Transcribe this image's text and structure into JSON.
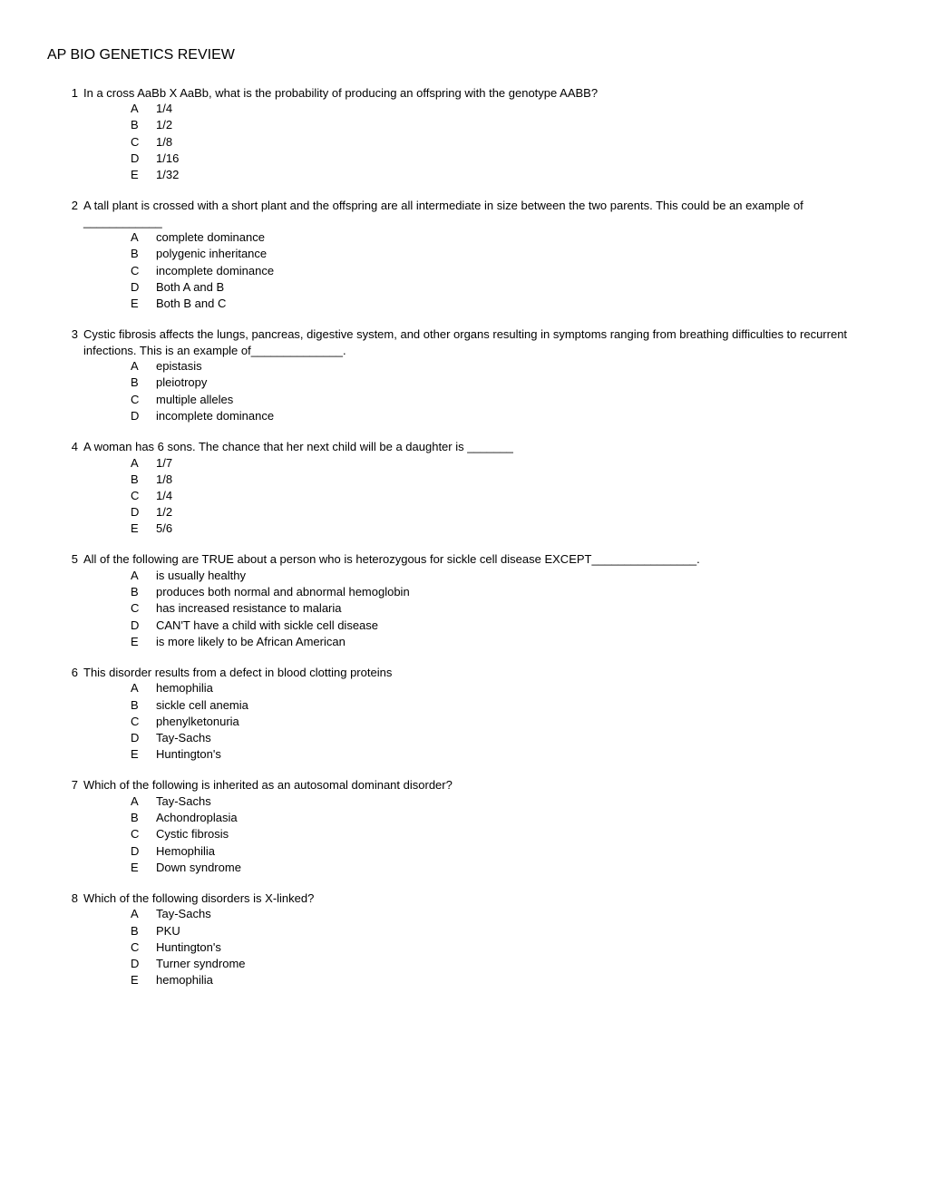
{
  "title": "AP BIO GENETICS REVIEW",
  "questions": [
    {
      "num": "1",
      "text": "In a cross AaBb  X  AaBb, what is the probability of producing an offspring with the   genotype AABB?",
      "choices": [
        {
          "letter": "A",
          "text": "1/4"
        },
        {
          "letter": "B",
          "text": "1/2"
        },
        {
          "letter": "C",
          "text": "1/8"
        },
        {
          "letter": "D",
          "text": "1/16"
        },
        {
          "letter": "E",
          "text": "1/32"
        }
      ]
    },
    {
      "num": "2",
      "text": "A tall plant is crossed with a short plant and the offspring are all intermediate in size between the two parents. This could be an example of ____________",
      "choices": [
        {
          "letter": "A",
          "text": "complete dominance"
        },
        {
          "letter": "B",
          "text": "polygenic inheritance"
        },
        {
          "letter": "C",
          "text": "incomplete dominance"
        },
        {
          "letter": "D",
          "text": "Both A and B"
        },
        {
          "letter": "E",
          "text": "Both B and C"
        }
      ]
    },
    {
      "num": "3",
      "text": "Cystic fibrosis affects the lungs, pancreas, digestive system, and other organs resulting in symptoms ranging from breathing difficulties to recurrent infections. This is an example of______________.",
      "choices": [
        {
          "letter": "A",
          "text": "epistasis"
        },
        {
          "letter": "B",
          "text": "pleiotropy"
        },
        {
          "letter": "C",
          "text": "multiple alleles"
        },
        {
          "letter": "D",
          "text": "incomplete dominance"
        }
      ]
    },
    {
      "num": "4",
      "text": "A woman has 6 sons. The chance that her next child will be a daughter is _______",
      "choices": [
        {
          "letter": "A",
          "text": "1/7"
        },
        {
          "letter": "B",
          "text": "1/8"
        },
        {
          "letter": "C",
          "text": "1/4"
        },
        {
          "letter": "D",
          "text": "1/2"
        },
        {
          "letter": "E",
          "text": "5/6"
        }
      ]
    },
    {
      "num": "5",
      "text": "All of the following are TRUE about a person who is heterozygous for sickle cell disease EXCEPT________________.",
      "choices": [
        {
          "letter": "A",
          "text": "is usually healthy"
        },
        {
          "letter": "B",
          "text": "produces both normal and abnormal hemoglobin"
        },
        {
          "letter": "C",
          "text": "has increased resistance to malaria"
        },
        {
          "letter": "D",
          "text": "CAN'T have a child with sickle cell disease"
        },
        {
          "letter": "E",
          "text": "is more likely to be African American"
        }
      ]
    },
    {
      "num": "6",
      "text": "This disorder results from a defect in blood clotting proteins",
      "choices": [
        {
          "letter": "A",
          "text": "hemophilia"
        },
        {
          "letter": "B",
          "text": "sickle cell anemia"
        },
        {
          "letter": "C",
          "text": "phenylketonuria"
        },
        {
          "letter": "D",
          "text": "Tay-Sachs"
        },
        {
          "letter": "E",
          "text": "Huntington's"
        }
      ]
    },
    {
      "num": "7",
      "text": "Which of the following is inherited as an autosomal dominant disorder?",
      "choices": [
        {
          "letter": "A",
          "text": "Tay-Sachs"
        },
        {
          "letter": "B",
          "text": "Achondroplasia"
        },
        {
          "letter": "C",
          "text": "Cystic fibrosis"
        },
        {
          "letter": "D",
          "text": "Hemophilia"
        },
        {
          "letter": "E",
          "text": "Down syndrome"
        }
      ]
    },
    {
      "num": "8",
      "text": "Which of the following disorders is X-linked?",
      "choices": [
        {
          "letter": "A",
          "text": "Tay-Sachs"
        },
        {
          "letter": "B",
          "text": "PKU"
        },
        {
          "letter": "C",
          "text": "Huntington's"
        },
        {
          "letter": "D",
          "text": "Turner syndrome"
        },
        {
          "letter": "E",
          "text": "hemophilia"
        }
      ]
    }
  ]
}
